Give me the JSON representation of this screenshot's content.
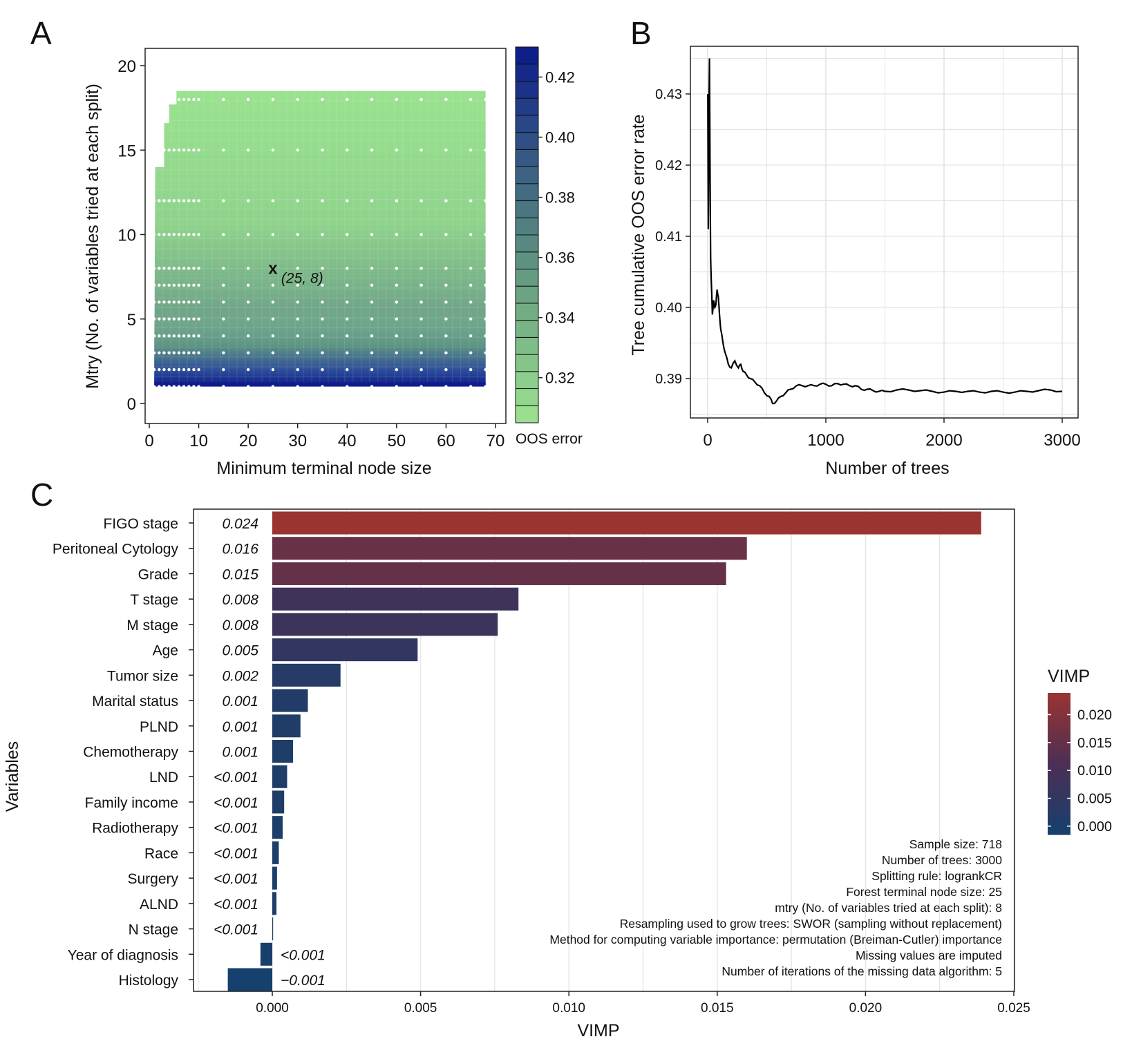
{
  "panels": {
    "A": "A",
    "B": "B",
    "C": "C"
  },
  "chart_data": [
    {
      "panel": "A",
      "type": "heatmap",
      "xlabel": "Minimum terminal node size",
      "ylabel": "Mtry (No. of variables tried at each split)",
      "xlim": [
        0,
        70
      ],
      "ylim": [
        0,
        21
      ],
      "x_ticks": [
        0,
        10,
        20,
        30,
        40,
        50,
        60,
        70
      ],
      "y_ticks": [
        0,
        5,
        10,
        15,
        20
      ],
      "legend_title": "OOS error",
      "legend_ticks": [
        "0.42",
        "0.40",
        "0.38",
        "0.36",
        "0.34",
        "0.32"
      ],
      "legend_range": [
        0.305,
        0.43
      ],
      "legend_placement": "right",
      "grid_x": [
        1,
        2,
        3,
        4,
        5,
        6,
        7,
        8,
        9,
        10,
        15,
        20,
        25,
        30,
        35,
        40,
        45,
        50,
        55,
        60,
        65,
        68
      ],
      "grid_y": [
        1,
        2,
        3,
        4,
        5,
        6,
        7,
        8,
        10,
        12,
        15,
        18
      ],
      "optimum": {
        "x": 25,
        "y": 8,
        "marker": "x",
        "label": "(25, 8)"
      },
      "colors": {
        "low": "#9ce38f",
        "mid": "#5b8f7f",
        "high": "#0c1a8a"
      }
    },
    {
      "panel": "B",
      "type": "line",
      "xlabel": "Number of trees",
      "ylabel": "Tree cumulative OOS error rate",
      "xlim": [
        0,
        3000
      ],
      "ylim": [
        0.385,
        0.436
      ],
      "x_ticks": [
        0,
        1000,
        2000,
        3000
      ],
      "y_ticks": [
        "0.39",
        "0.40",
        "0.41",
        "0.42",
        "0.43"
      ],
      "grid": true,
      "series": [
        {
          "x": [
            1,
            5,
            10,
            15,
            20,
            25,
            30,
            40,
            50,
            60,
            70,
            80,
            90,
            100,
            110,
            130,
            150,
            175,
            200,
            230,
            260,
            280,
            300,
            330,
            360,
            400,
            440,
            480,
            520,
            550,
            580,
            620,
            660,
            700,
            750,
            800,
            850,
            900,
            950,
            1000,
            1050,
            1100,
            1150,
            1200,
            1250,
            1300,
            1350,
            1400,
            1450,
            1500,
            1600,
            1700,
            1800,
            1900,
            2000,
            2100,
            2200,
            2300,
            2400,
            2500,
            2600,
            2700,
            2800,
            2900,
            3000
          ],
          "y": [
            0.43,
            0.411,
            0.425,
            0.435,
            0.42,
            0.407,
            0.404,
            0.399,
            0.401,
            0.4,
            0.4005,
            0.4025,
            0.4015,
            0.399,
            0.397,
            0.395,
            0.3935,
            0.392,
            0.3915,
            0.3925,
            0.3915,
            0.392,
            0.391,
            0.3905,
            0.39,
            0.3895,
            0.389,
            0.388,
            0.3875,
            0.3865,
            0.3868,
            0.3875,
            0.388,
            0.3885,
            0.389,
            0.389,
            0.389,
            0.389,
            0.3892,
            0.3892,
            0.389,
            0.3893,
            0.3892,
            0.389,
            0.389,
            0.3885,
            0.3885,
            0.3883,
            0.3882,
            0.3882,
            0.3884,
            0.3884,
            0.3883,
            0.3882,
            0.3881,
            0.3882,
            0.3882,
            0.3881,
            0.3882,
            0.3881,
            0.3881,
            0.3882,
            0.3883,
            0.3884,
            0.3882
          ]
        }
      ]
    },
    {
      "panel": "C",
      "type": "bar",
      "orientation": "horizontal",
      "xlabel": "VIMP",
      "ylabel": "Variables",
      "xlim": [
        -0.0027,
        0.0251
      ],
      "x_ticks": [
        "0.000",
        "0.005",
        "0.010",
        "0.015",
        "0.020",
        "0.025"
      ],
      "categories": [
        "FIGO stage",
        "Peritoneal Cytology",
        "Grade",
        "T stage",
        "M stage",
        "Age",
        "Tumor size",
        "Marital status",
        "PLND",
        "Chemotherapy",
        "LND",
        "Family income",
        "Radiotherapy",
        "Race",
        "Surgery",
        "ALND",
        "N stage",
        "Year of diagnosis",
        "Histology"
      ],
      "values": [
        0.0239,
        0.016,
        0.0153,
        0.0083,
        0.0076,
        0.0049,
        0.0023,
        0.0012,
        0.00095,
        0.0007,
        0.0005,
        0.0004,
        0.00035,
        0.00022,
        0.00016,
        0.00014,
        2e-05,
        -0.0004,
        -0.0015
      ],
      "value_labels": [
        "0.024",
        "0.016",
        "0.015",
        "0.008",
        "0.008",
        "0.005",
        "0.002",
        "0.001",
        "0.001",
        "0.001",
        "<0.001",
        "<0.001",
        "<0.001",
        "<0.001",
        "<0.001",
        "<0.001",
        "<0.001",
        "<0.001",
        "−0.001"
      ],
      "legend_title": "VIMP",
      "legend_ticks": [
        "0.020",
        "0.015",
        "0.010",
        "0.005",
        "0.000"
      ],
      "legend_range": [
        -0.0015,
        0.0239
      ],
      "legend_placement": "right",
      "colors": {
        "low": "#16406d",
        "mid": "#4c2f55",
        "high": "#9a3431"
      },
      "annotations": [
        "Sample size: 718",
        "Number of trees: 3000",
        "Splitting rule: logrankCR",
        "Forest terminal node size: 25",
        "mtry (No. of variables tried at each split): 8",
        "Resampling used to grow trees: SWOR (sampling without replacement)",
        "Method for computing variable importance: permutation (Breiman-Cutler) importance",
        "Missing values are imputed",
        "Number of iterations of the missing data algorithm: 5"
      ]
    }
  ]
}
